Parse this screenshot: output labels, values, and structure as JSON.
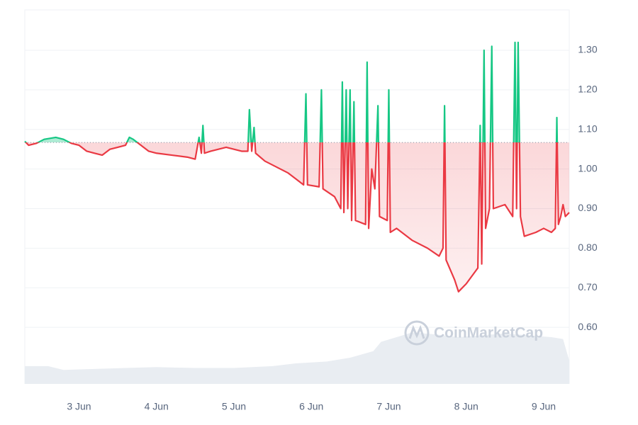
{
  "chart_data": {
    "type": "line",
    "x": [
      2.3,
      2.35,
      2.45,
      2.55,
      2.7,
      2.8,
      2.9,
      3.0,
      3.1,
      3.2,
      3.3,
      3.4,
      3.5,
      3.6,
      3.65,
      3.7,
      3.8,
      3.9,
      4.0,
      4.2,
      4.4,
      4.5,
      4.55,
      4.58,
      4.6,
      4.62,
      4.7,
      4.8,
      4.9,
      5.0,
      5.1,
      5.18,
      5.2,
      5.23,
      5.26,
      5.28,
      5.4,
      5.55,
      5.7,
      5.9,
      5.93,
      5.95,
      6.1,
      6.13,
      6.15,
      6.3,
      6.38,
      6.4,
      6.42,
      6.45,
      6.47,
      6.5,
      6.52,
      6.55,
      6.57,
      6.7,
      6.72,
      6.74,
      6.78,
      6.82,
      6.86,
      6.88,
      6.98,
      7.0,
      7.02,
      7.1,
      7.3,
      7.5,
      7.65,
      7.7,
      7.72,
      7.74,
      7.85,
      7.9,
      8.0,
      8.15,
      8.18,
      8.2,
      8.23,
      8.25,
      8.3,
      8.33,
      8.35,
      8.5,
      8.6,
      8.63,
      8.65,
      8.67,
      8.7,
      8.75,
      8.9,
      9.0,
      9.1,
      9.15,
      9.17,
      9.19,
      9.22,
      9.25,
      9.28,
      9.33
    ],
    "values": [
      1.07,
      1.06,
      1.065,
      1.075,
      1.08,
      1.075,
      1.065,
      1.06,
      1.045,
      1.04,
      1.035,
      1.05,
      1.055,
      1.06,
      1.08,
      1.075,
      1.06,
      1.045,
      1.04,
      1.035,
      1.03,
      1.025,
      1.08,
      1.04,
      1.11,
      1.04,
      1.045,
      1.05,
      1.055,
      1.05,
      1.045,
      1.045,
      1.15,
      1.045,
      1.105,
      1.04,
      1.02,
      1.005,
      0.99,
      0.96,
      1.19,
      0.96,
      0.955,
      1.2,
      0.95,
      0.93,
      0.9,
      1.22,
      0.89,
      1.2,
      0.9,
      1.2,
      0.87,
      1.17,
      0.87,
      0.86,
      1.27,
      0.85,
      1.0,
      0.95,
      1.16,
      0.88,
      0.87,
      1.2,
      0.84,
      0.85,
      0.82,
      0.8,
      0.78,
      0.8,
      1.16,
      0.77,
      0.72,
      0.69,
      0.71,
      0.75,
      1.11,
      0.76,
      1.3,
      0.85,
      0.9,
      1.31,
      0.9,
      0.91,
      0.88,
      1.32,
      0.9,
      1.32,
      0.88,
      0.83,
      0.84,
      0.85,
      0.84,
      0.85,
      1.13,
      0.86,
      0.88,
      0.91,
      0.88,
      0.89
    ],
    "baseline": 1.067,
    "colors": {
      "above": "#16c784",
      "below": "#ea3943"
    },
    "xlim": [
      2.3,
      9.33
    ],
    "xticks": [
      {
        "value": 3,
        "label": "3 Jun"
      },
      {
        "value": 4,
        "label": "4 Jun"
      },
      {
        "value": 5,
        "label": "5 Jun"
      },
      {
        "value": 6,
        "label": "6 Jun"
      },
      {
        "value": 7,
        "label": "7 Jun"
      },
      {
        "value": 8,
        "label": "8 Jun"
      },
      {
        "value": 9,
        "label": "9 Jun"
      }
    ],
    "ylim": [
      0.457,
      1.402
    ],
    "yticks": [
      {
        "value": 0.6,
        "label": "0.60"
      },
      {
        "value": 0.7,
        "label": "0.70"
      },
      {
        "value": 0.8,
        "label": "0.80"
      },
      {
        "value": 0.9,
        "label": "0.90"
      },
      {
        "value": 1.0,
        "label": "1.00"
      },
      {
        "value": 1.1,
        "label": "1.10"
      },
      {
        "value": 1.2,
        "label": "1.20"
      },
      {
        "value": 1.3,
        "label": "1.30"
      }
    ],
    "grid": true,
    "volume": {
      "axis": "y2",
      "color": "#e9edf2",
      "x": [
        2.3,
        2.6,
        2.8,
        3.2,
        3.6,
        4.0,
        4.5,
        5.0,
        5.5,
        5.8,
        6.2,
        6.5,
        6.8,
        6.9,
        7.1,
        7.3,
        7.6,
        7.9,
        8.2,
        8.5,
        8.8,
        9.1,
        9.25,
        9.33
      ],
      "values": [
        19,
        19,
        15,
        16,
        17,
        18,
        17,
        17,
        19,
        22,
        24,
        28,
        35,
        45,
        50,
        55,
        53,
        50,
        52,
        54,
        52,
        50,
        48,
        25
      ]
    },
    "y2lim": [
      0,
      400
    ],
    "watermark": "CoinMarketCap"
  }
}
